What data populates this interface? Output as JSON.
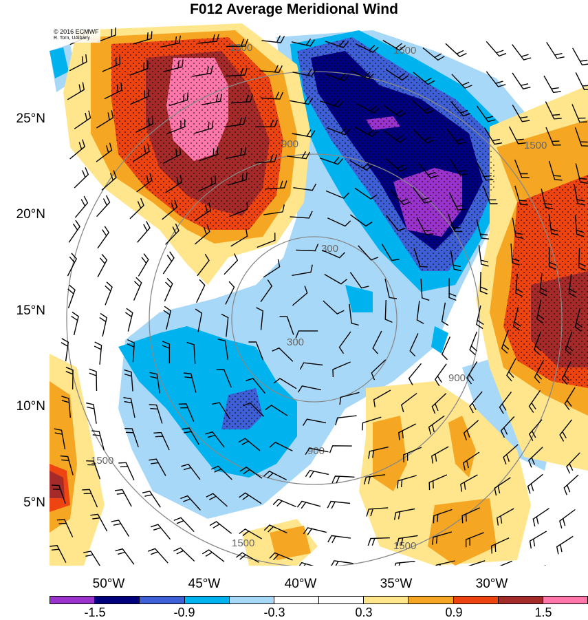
{
  "title": "F012 Average Meridional Wind",
  "credit": {
    "line1": "© 2016 ECMWF",
    "line2": "R. Torn, UAlbany"
  },
  "lat_labels": [
    "25°N",
    "20°N",
    "15°N",
    "10°N",
    "5°N"
  ],
  "lon_labels": [
    "50°W",
    "45°W",
    "40°W",
    "35°W",
    "30°W"
  ],
  "range_ring_labels": [
    "300",
    "900",
    "1500"
  ],
  "colorbar": {
    "colors": [
      "#9933cc",
      "#00007f",
      "#3f5fd6",
      "#00b2ee",
      "#a8d8f8",
      "#ffffff",
      "#ffffff",
      "#ffe68c",
      "#f5a623",
      "#ee4411",
      "#a52a2a",
      "#ff77aa"
    ],
    "tick_labels": [
      "-1.5",
      "-0.9",
      "-0.3",
      "0.3",
      "0.9",
      "1.5"
    ]
  }
}
